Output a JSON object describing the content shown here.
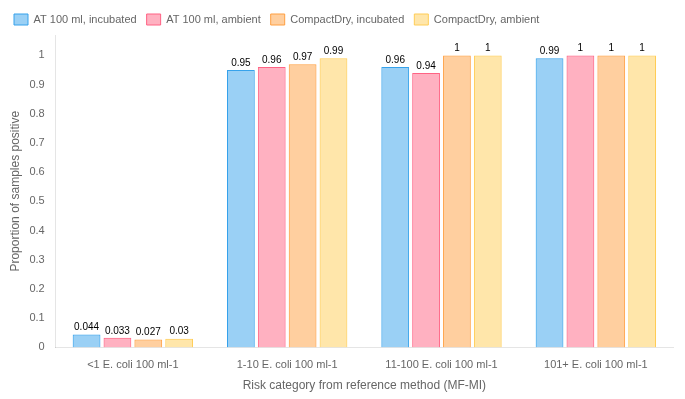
{
  "chart_data": {
    "type": "bar",
    "categories": [
      "<1 E. coli 100 ml-1",
      "1-10 E. coli 100 ml-1",
      "11-100 E. coli 100 ml-1",
      "101+ E. coli 100 ml-1"
    ],
    "series": [
      {
        "name": "AT 100 ml, incubated",
        "values": [
          0.044,
          0.95,
          0.96,
          0.99
        ]
      },
      {
        "name": "AT 100 ml, ambient",
        "values": [
          0.033,
          0.96,
          0.94,
          1.0
        ]
      },
      {
        "name": "CompactDry, incubated",
        "values": [
          0.027,
          0.97,
          1.0,
          1.0
        ]
      },
      {
        "name": "CompactDry, ambient",
        "values": [
          0.03,
          0.99,
          1.0,
          1.0
        ]
      }
    ],
    "xlabel": "Risk category from reference method (MF-MI)",
    "ylabel": "Proportion of samples positive",
    "ylim": [
      0,
      1.07
    ],
    "yticks": [
      0,
      0.1,
      0.2,
      0.3,
      0.4,
      0.5,
      0.6,
      0.7,
      0.8,
      0.9,
      1
    ],
    "grid": false,
    "legend": "upper left",
    "data_labels": true
  }
}
